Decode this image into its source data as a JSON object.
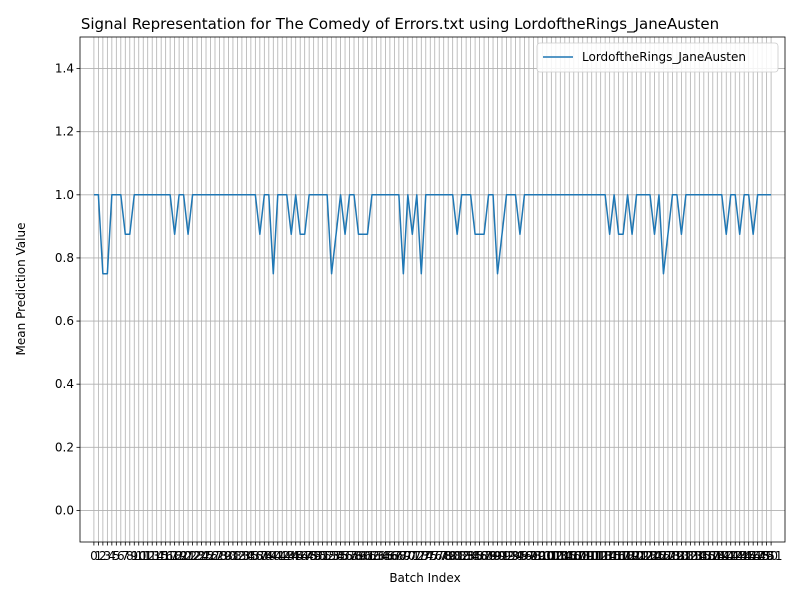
{
  "chart_data": {
    "type": "line",
    "title": "Signal Representation for The Comedy of Errors.txt using LordoftheRings_JaneAusten",
    "xlabel": "Batch Index",
    "ylabel": "Mean Prediction Value",
    "xlim": [
      -3.1,
      154.1
    ],
    "ylim": [
      -0.1,
      1.5
    ],
    "yticks": [
      0.0,
      0.2,
      0.4,
      0.6,
      0.8,
      1.0,
      1.2,
      1.4
    ],
    "grid": true,
    "legend_position": "top-right",
    "series": [
      {
        "name": "LordoftheRings_JaneAusten",
        "color": "#1f77b4",
        "x": [
          0,
          1,
          2,
          3,
          4,
          5,
          6,
          7,
          8,
          9,
          10,
          11,
          12,
          13,
          14,
          15,
          16,
          17,
          18,
          19,
          20,
          21,
          22,
          23,
          24,
          25,
          26,
          27,
          28,
          29,
          30,
          31,
          32,
          33,
          34,
          35,
          36,
          37,
          38,
          39,
          40,
          41,
          42,
          43,
          44,
          45,
          46,
          47,
          48,
          49,
          50,
          51,
          52,
          53,
          54,
          55,
          56,
          57,
          58,
          59,
          60,
          61,
          62,
          63,
          64,
          65,
          66,
          67,
          68,
          69,
          70,
          71,
          72,
          73,
          74,
          75,
          76,
          77,
          78,
          79,
          80,
          81,
          82,
          83,
          84,
          85,
          86,
          87,
          88,
          89,
          90,
          91,
          92,
          93,
          94,
          95,
          96,
          97,
          98,
          99,
          100,
          101,
          102,
          103,
          104,
          105,
          106,
          107,
          108,
          109,
          110,
          111,
          112,
          113,
          114,
          115,
          116,
          117,
          118,
          119,
          120,
          121,
          122,
          123,
          124,
          125,
          126,
          127,
          128,
          129,
          130,
          131,
          132,
          133,
          134,
          135,
          136,
          137,
          138,
          139,
          140,
          141,
          142,
          143,
          144,
          145,
          146,
          147,
          148,
          149,
          150,
          151
        ],
        "values": [
          1,
          1,
          0.75,
          0.75,
          1,
          1,
          1,
          0.875,
          0.875,
          1,
          1,
          1,
          1,
          1,
          1,
          1,
          1,
          1,
          0.875,
          1,
          1,
          0.875,
          1,
          1,
          1,
          1,
          1,
          1,
          1,
          1,
          1,
          1,
          1,
          1,
          1,
          1,
          1,
          0.875,
          1,
          1,
          0.75,
          1,
          1,
          1,
          0.875,
          1,
          0.875,
          0.875,
          1,
          1,
          1,
          1,
          1,
          0.75,
          0.875,
          1,
          0.875,
          1,
          1,
          0.875,
          0.875,
          0.875,
          1,
          1,
          1,
          1,
          1,
          1,
          1,
          0.75,
          1,
          0.875,
          1,
          0.75,
          1,
          1,
          1,
          1,
          1,
          1,
          1,
          0.875,
          1,
          1,
          1,
          0.875,
          0.875,
          0.875,
          1,
          1,
          0.75,
          0.875,
          1,
          1,
          1,
          0.875,
          1,
          1,
          1,
          1,
          1,
          1,
          1,
          1,
          1,
          1,
          1,
          1,
          1,
          1,
          1,
          1,
          1,
          1,
          1,
          0.875,
          1,
          0.875,
          0.875,
          1,
          0.875,
          1,
          1,
          1,
          1,
          0.875,
          1,
          0.75,
          0.875,
          1,
          1,
          0.875,
          1,
          1,
          1,
          1,
          1,
          1,
          1,
          1,
          1,
          0.875,
          1,
          1,
          0.875,
          1,
          1,
          0.875,
          1,
          1,
          1,
          1
        ]
      }
    ],
    "xtick_labels": [
      "0",
      "1",
      "2",
      "3",
      "4",
      "5",
      "6",
      "7",
      "8",
      "9",
      "10",
      "11",
      "12",
      "13",
      "14",
      "15",
      "16",
      "17",
      "18",
      "19",
      "20",
      "21",
      "22",
      "23",
      "24",
      "25",
      "26",
      "27",
      "28",
      "29",
      "30",
      "31",
      "32",
      "33",
      "34",
      "35",
      "36",
      "37",
      "38",
      "39",
      "40",
      "41",
      "42",
      "43",
      "44",
      "45",
      "46",
      "47",
      "48",
      "49",
      "50",
      "51",
      "52",
      "53",
      "54",
      "55",
      "56",
      "57",
      "58",
      "59",
      "60",
      "61",
      "62",
      "63",
      "64",
      "65",
      "66",
      "67",
      "68",
      "69",
      "70",
      "71",
      "72",
      "73",
      "74",
      "75",
      "76",
      "77",
      "78",
      "79",
      "80",
      "81",
      "82",
      "83",
      "84",
      "85",
      "86",
      "87",
      "88",
      "89",
      "90",
      "91",
      "92",
      "93",
      "94",
      "95",
      "96",
      "97",
      "98",
      "99",
      "100",
      "101",
      "102",
      "103",
      "104",
      "105",
      "106",
      "107",
      "108",
      "109",
      "110",
      "111",
      "112",
      "113",
      "114",
      "115",
      "116",
      "117",
      "118",
      "119",
      "120",
      "121",
      "122",
      "123",
      "124",
      "125",
      "126",
      "127",
      "128",
      "129",
      "130",
      "131",
      "132",
      "133",
      "134",
      "135",
      "136",
      "137",
      "138",
      "139",
      "140",
      "141",
      "142",
      "143",
      "144",
      "145",
      "146",
      "147",
      "148",
      "149",
      "150",
      "151"
    ]
  }
}
